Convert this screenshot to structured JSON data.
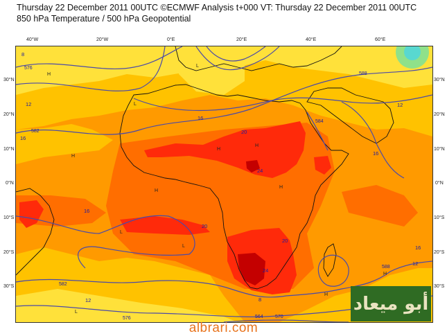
{
  "header": {
    "title_line1": "Thursday 22 December 2011 00UTC ©ECMWF Analysis t+000 VT: Thursday 22 December 2011 00UTC",
    "title_line2": "850 hPa Temperature / 500 hPa Geopotential"
  },
  "axes": {
    "lon_labels": [
      "40°W",
      "20°W",
      "0°E",
      "20°E",
      "40°E",
      "60°E"
    ],
    "lat_labels": [
      "30°N",
      "20°N",
      "10°N",
      "0°N",
      "10°S",
      "20°S",
      "30°S"
    ]
  },
  "temperature_labels": [
    "8",
    "12",
    "16",
    "20",
    "24"
  ],
  "geopotential_labels": [
    "576",
    "582",
    "588",
    "584",
    "570",
    "564"
  ],
  "colors": {
    "ocean_pale": "#ffe13a",
    "yellow": "#ffc200",
    "orange": "#ff9a00",
    "dark_orange": "#ff6e00",
    "red": "#ff2a0a",
    "dark_red": "#c40000",
    "contour": "#4a4aa8",
    "coast": "#111111",
    "cold_green": "#8fe18a"
  },
  "watermark": "albrari.com",
  "logo_text": "أبو ميعاد"
}
